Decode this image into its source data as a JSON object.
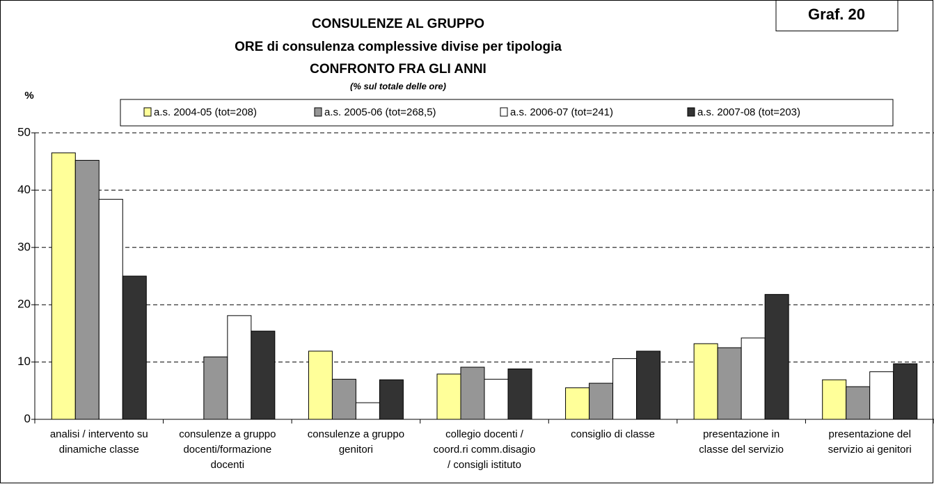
{
  "chart_data": {
    "type": "bar",
    "badge": "Graf. 20",
    "title": "CONSULENZE AL GRUPPO",
    "subtitle": [
      "ORE di consulenza complessive divise per tipologia",
      "CONFRONTO FRA GLI ANNI"
    ],
    "note": "(% sul totale  delle ore)",
    "y_label": "%",
    "categories": [
      [
        "analisi / intervento su",
        "dinamiche classe"
      ],
      [
        "consulenze a gruppo",
        "docenti/formazione",
        "docenti"
      ],
      [
        "consulenze a gruppo",
        "genitori"
      ],
      [
        "collegio docenti /",
        "coord.ri comm.disagio",
        "/ consigli istituto"
      ],
      [
        "consiglio di classe"
      ],
      [
        "presentazione in",
        "classe del servizio"
      ],
      [
        "presentazione del",
        "servizio ai genitori"
      ]
    ],
    "series": [
      {
        "name": "a.s. 2004-05 (tot=208)",
        "color": "#ffff99",
        "values": [
          46.5,
          0,
          11.9,
          7.9,
          5.5,
          13.2,
          6.9
        ]
      },
      {
        "name": "a.s. 2005-06 (tot=268,5)",
        "color": "#969696",
        "values": [
          45.2,
          10.9,
          7.0,
          9.1,
          6.3,
          12.5,
          5.7
        ]
      },
      {
        "name": "a.s. 2006-07 (tot=241)",
        "color": "#ffffff",
        "values": [
          38.4,
          18.1,
          2.9,
          7.0,
          10.6,
          14.2,
          8.3
        ]
      },
      {
        "name": "a.s. 2007-08 (tot=203)",
        "color": "#333333",
        "values": [
          25.0,
          15.4,
          6.9,
          8.8,
          11.9,
          21.8,
          9.7
        ]
      }
    ],
    "ylim": [
      0,
      50
    ],
    "yticks": [
      0,
      10,
      20,
      30,
      40,
      50
    ],
    "grid": true,
    "legend": "top"
  }
}
